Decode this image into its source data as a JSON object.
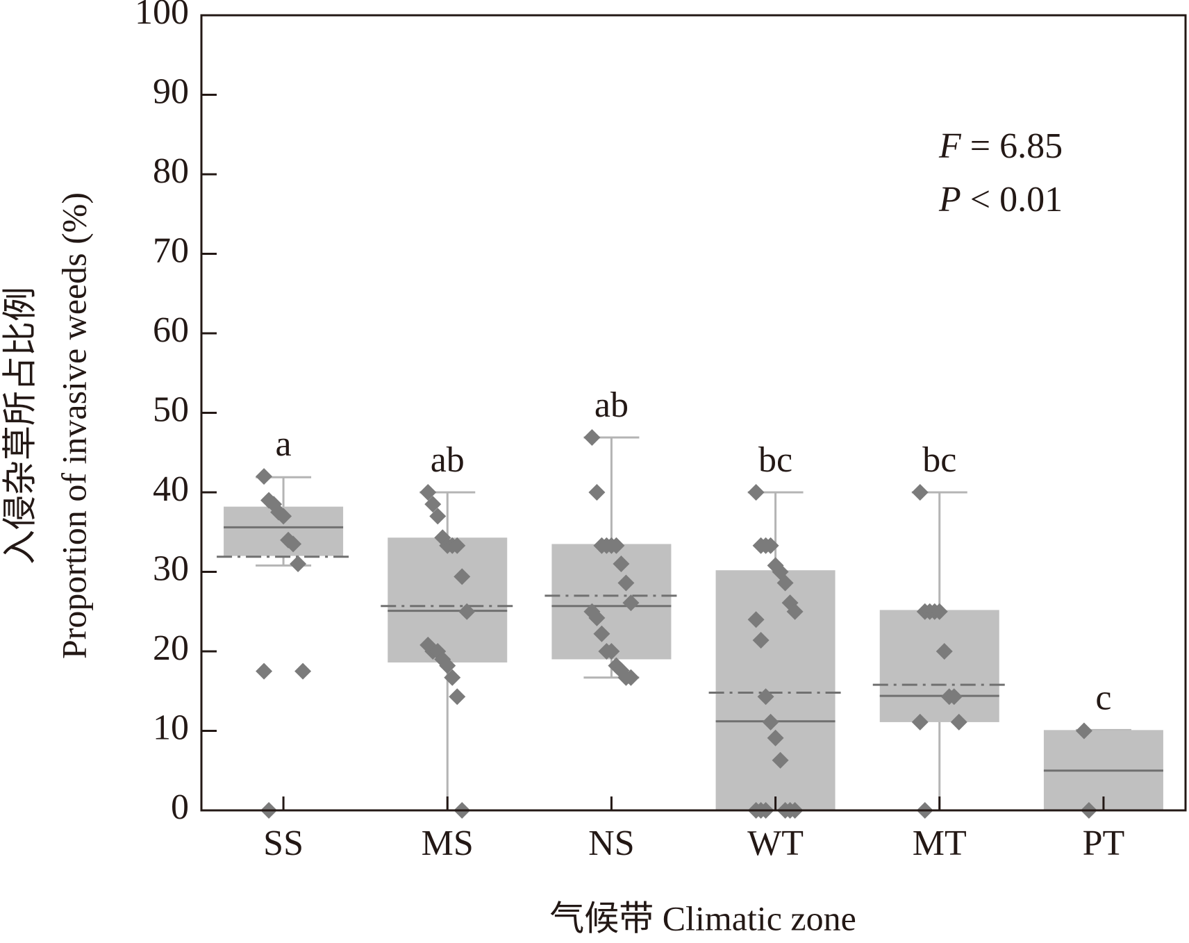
{
  "chart_data": {
    "type": "box",
    "x_label": "气候带 Climatic zone",
    "y_label": [
      "入侵杂草所占比例",
      "Proportion of invasive weeds (%)"
    ],
    "annotations": [
      {
        "symbol": "F",
        "text": "= 6.85"
      },
      {
        "symbol": "P",
        "text": "< 0.01"
      }
    ],
    "categories": [
      "SS",
      "MS",
      "NS",
      "WT",
      "MT",
      "PT"
    ],
    "box_color": "#c0c0c0",
    "point_color": "#7b7b7b",
    "line_color": "#707070",
    "whisker_color": "#b4b4b4",
    "ylim": [
      0,
      100
    ],
    "yticks": [
      0,
      10,
      20,
      30,
      40,
      50,
      60,
      70,
      80,
      90,
      100
    ],
    "boxes": [
      {
        "whisker_low": 30.8,
        "q1": 32,
        "median": 35.6,
        "q3": 38.2,
        "whisker_high": 41.9,
        "mean": 31.9,
        "letter": "a",
        "points": [
          42,
          39,
          38.5,
          37.5,
          37,
          34,
          33.5,
          31,
          17.5,
          17.5,
          0
        ]
      },
      {
        "whisker_low": 0,
        "q1": 18.6,
        "median": 25.1,
        "q3": 34.3,
        "whisker_high": 40,
        "mean": 25.7,
        "letter": "ab",
        "points": [
          40,
          38.5,
          37,
          34.3,
          33.3,
          33.3,
          33.3,
          29.4,
          25,
          20.8,
          20,
          20,
          19,
          18.2,
          16.7,
          14.3,
          0
        ]
      },
      {
        "whisker_low": 16.7,
        "q1": 19,
        "median": 25.7,
        "q3": 33.5,
        "whisker_high": 46.9,
        "mean": 27,
        "letter": "ab",
        "points": [
          46.9,
          40,
          33.3,
          33.3,
          33.3,
          33.3,
          31,
          28.6,
          26.1,
          25,
          24.2,
          22.2,
          20,
          20,
          18.2,
          17.6,
          16.7,
          16.7
        ]
      },
      {
        "whisker_low": 0,
        "q1": 0,
        "median": 11.2,
        "q3": 30.2,
        "whisker_high": 40,
        "mean": 14.8,
        "letter": "bc",
        "points": [
          40,
          33.3,
          33.3,
          33.3,
          30.8,
          30,
          28.6,
          26.1,
          25,
          24,
          21.4,
          14.3,
          11.1,
          9.1,
          6.3,
          0,
          0,
          0,
          0,
          0,
          0
        ]
      },
      {
        "whisker_low": 0,
        "q1": 11.1,
        "median": 14.4,
        "q3": 25.2,
        "whisker_high": 40,
        "mean": 15.8,
        "letter": "bc",
        "points": [
          40,
          25,
          25,
          25,
          25,
          20,
          14.3,
          14.3,
          11.1,
          11.1,
          0
        ]
      },
      {
        "whisker_low": 0,
        "q1": 0,
        "median": 5,
        "q3": 10.1,
        "whisker_high": 10.1,
        "mean": null,
        "letter": "c",
        "points": [
          10,
          0
        ]
      }
    ]
  }
}
